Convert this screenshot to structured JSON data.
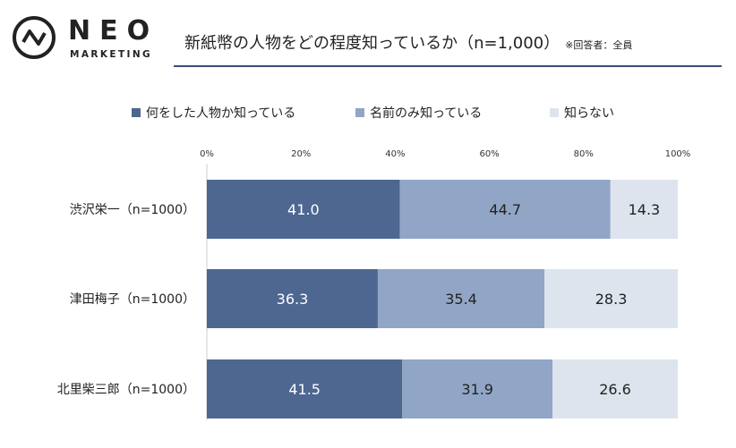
{
  "brand": {
    "name": "NEO",
    "sub": "MARKETING"
  },
  "header": {
    "title": "新紙幣の人物をどの程度知っているか（n=1,000）",
    "note": "※回答者：全員"
  },
  "colors": {
    "series1": "#4d6791",
    "series2": "#91a6c6",
    "series3": "#dde4ed",
    "rule": "#3b4f7c"
  },
  "chart_data": {
    "type": "bar",
    "orientation": "horizontal",
    "stacked": "percent",
    "categories": [
      "渋沢栄一（n=1000）",
      "津田梅子（n=1000）",
      "北里柴三郎（n=1000）"
    ],
    "series": [
      {
        "name": "何をした人物か知っている",
        "values": [
          41.0,
          36.3,
          41.5
        ]
      },
      {
        "name": "名前のみ知っている",
        "values": [
          44.7,
          35.4,
          31.9
        ]
      },
      {
        "name": "知らない",
        "values": [
          14.3,
          28.3,
          26.6
        ]
      }
    ],
    "data_labels": [
      [
        "41.0",
        "44.7",
        "14.3"
      ],
      [
        "36.3",
        "35.4",
        "28.3"
      ],
      [
        "41.5",
        "31.9",
        "26.6"
      ]
    ],
    "xlim": [
      0,
      100
    ],
    "xticks": [
      "0%",
      "20%",
      "40%",
      "60%",
      "80%",
      "100%"
    ],
    "legend_position": "top",
    "grid": false
  }
}
